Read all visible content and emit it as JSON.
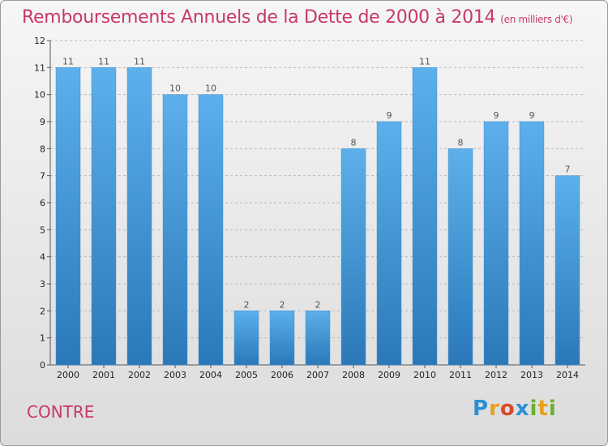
{
  "title": "Remboursements Annuels de la Dette de 2000 à 2014",
  "subtitle": "(en milliers d'€)",
  "commune": "CONTRE",
  "logo": {
    "letters": [
      "P",
      "r",
      "o",
      "x",
      "i",
      "t",
      "i"
    ],
    "colors": [
      "#2c8fd6",
      "#e8a020",
      "#d94a2a",
      "#2c8fd6",
      "#6ab02e",
      "#e8a020",
      "#6ab02e"
    ]
  },
  "chart_data": {
    "type": "bar",
    "categories": [
      "2000",
      "2001",
      "2002",
      "2003",
      "2004",
      "2005",
      "2006",
      "2007",
      "2008",
      "2009",
      "2010",
      "2011",
      "2012",
      "2013",
      "2014"
    ],
    "values": [
      11,
      11,
      11,
      10,
      10,
      2,
      2,
      2,
      8,
      9,
      11,
      8,
      9,
      9,
      7
    ],
    "title": "Remboursements Annuels de la Dette de 2000 à 2014",
    "ylim": [
      0,
      12
    ],
    "yticks": [
      0,
      1,
      2,
      3,
      4,
      5,
      6,
      7,
      8,
      9,
      10,
      11,
      12
    ],
    "grid": true,
    "bar_color": "#4a9fe0"
  }
}
